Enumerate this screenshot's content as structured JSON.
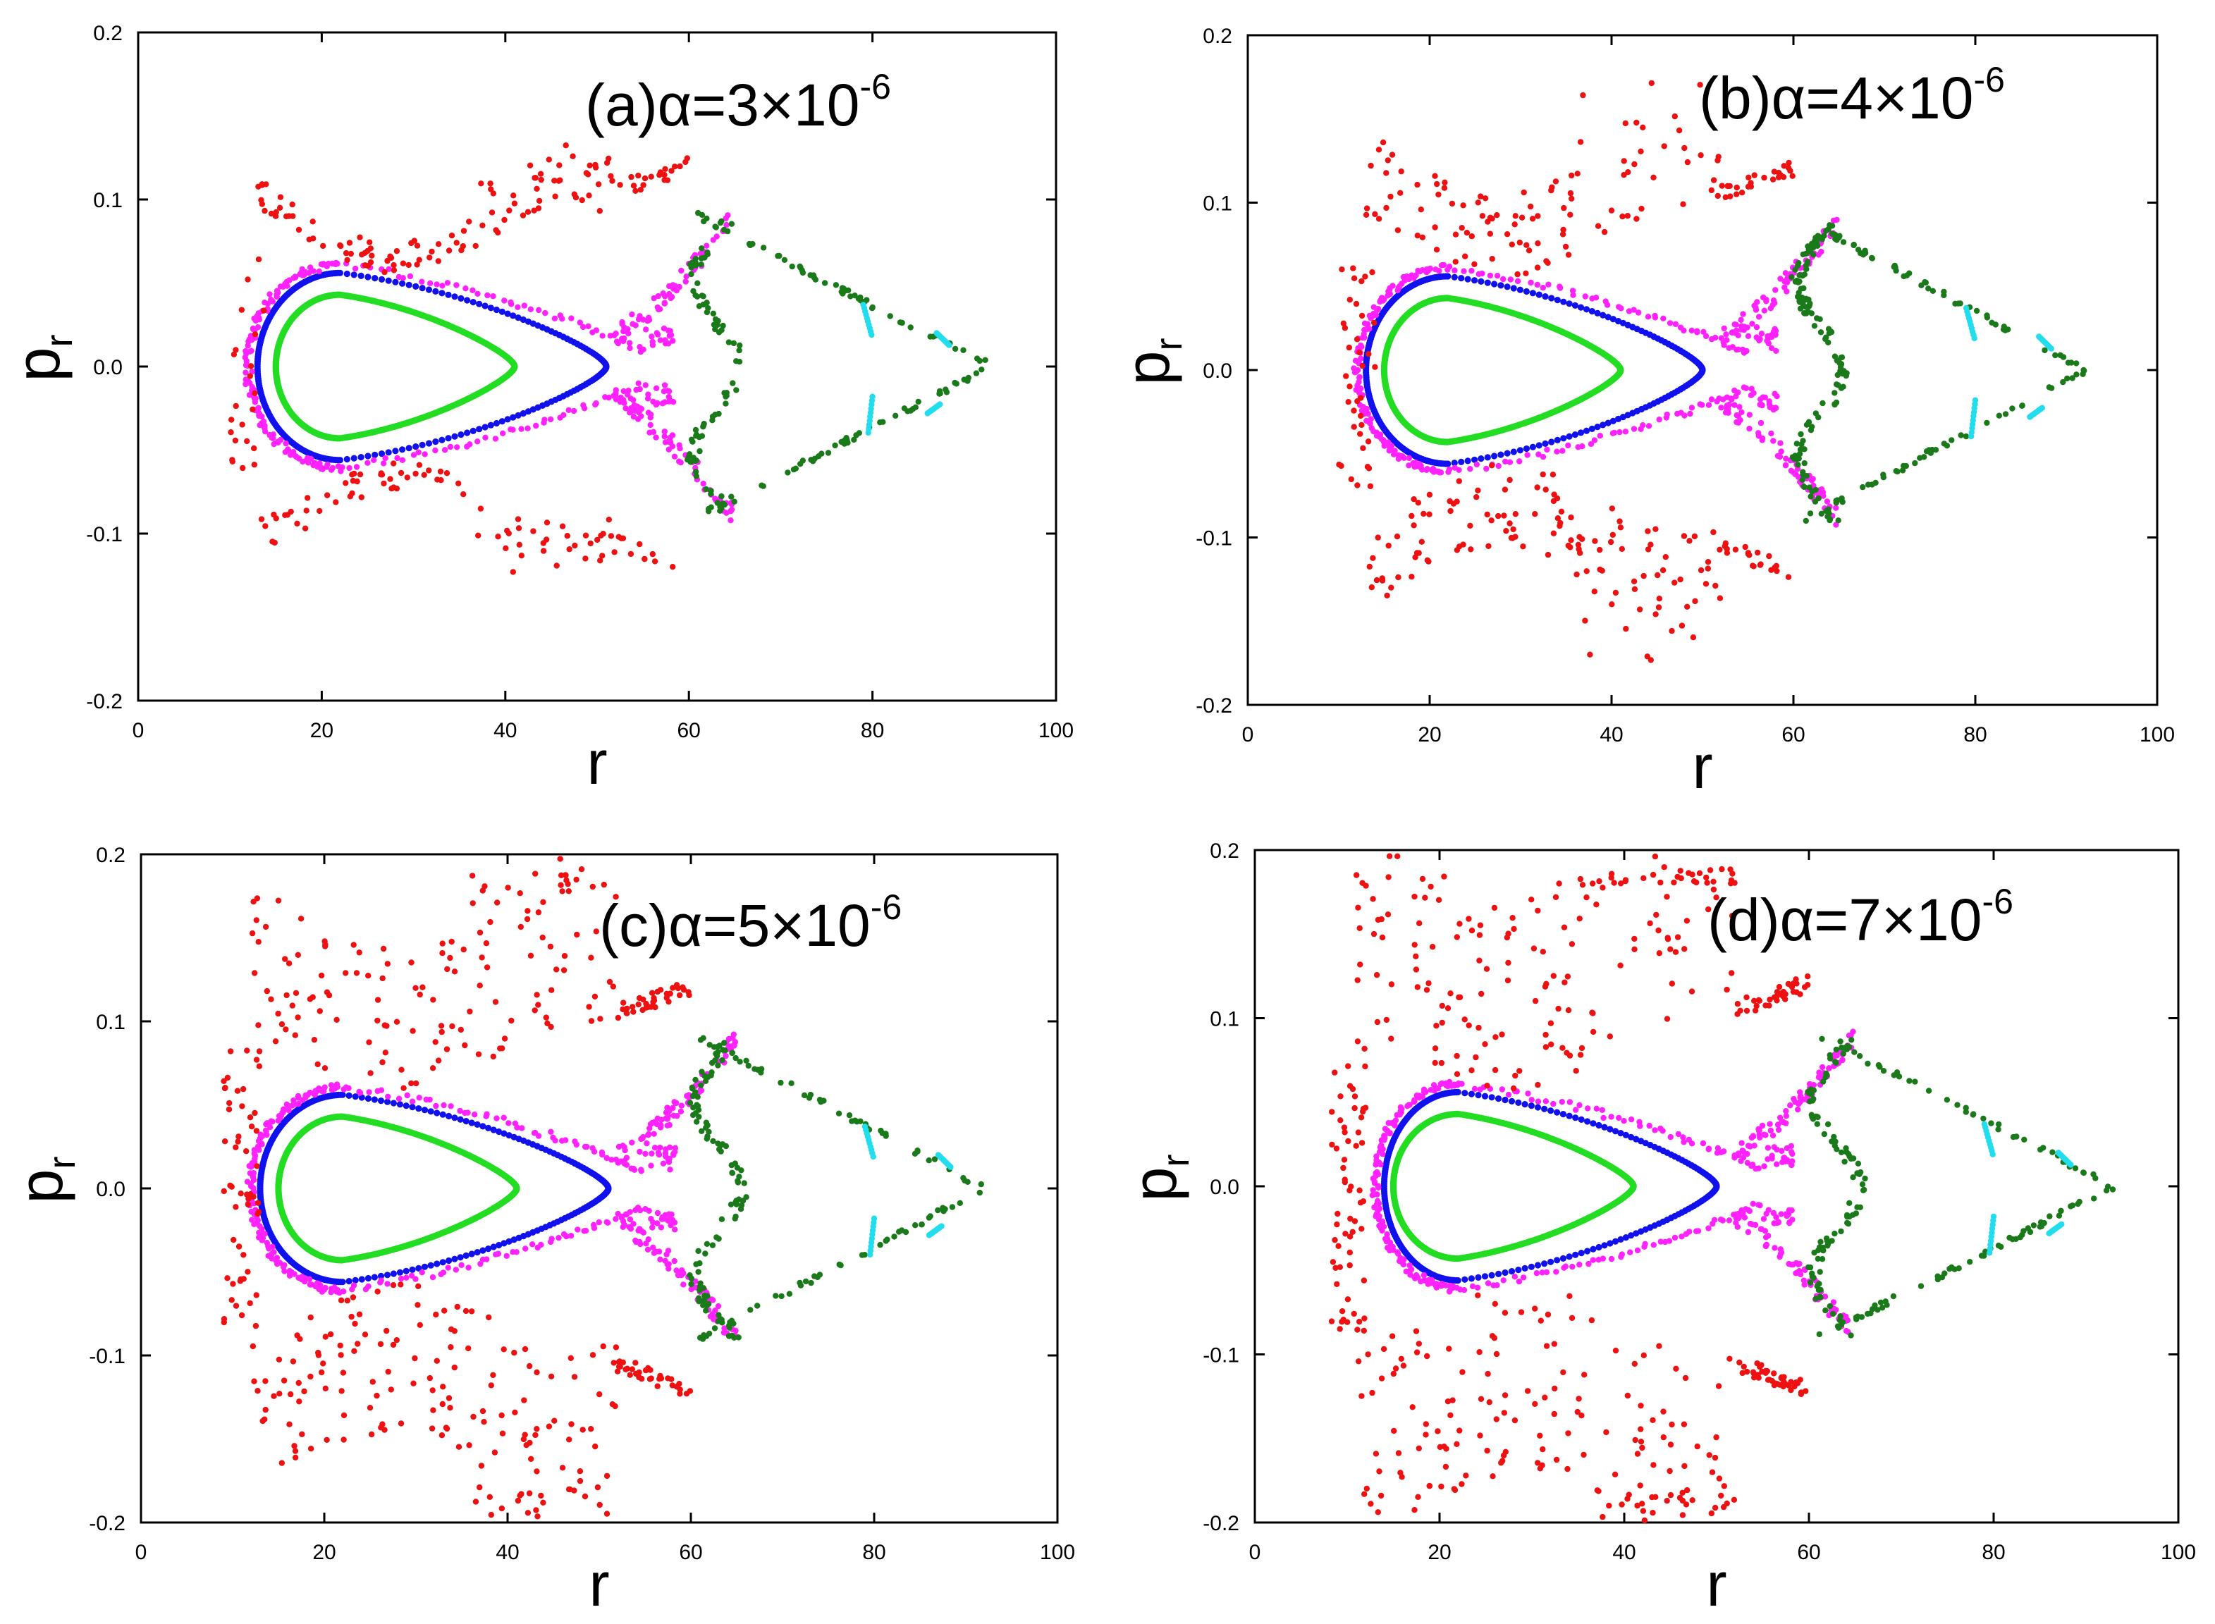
{
  "figure": {
    "description_colors": {
      "chaotic": "#ee1111",
      "boundary": "#ff22ff",
      "outer_torus": "#1111ee",
      "inner_torus": "#22dd22",
      "islands": "#1a7a1a",
      "small_islands": "#22ddee"
    }
  },
  "chart_data": [
    {
      "type": "scatter",
      "panel": "a",
      "title": {
        "prefix": "(a)α=3×10",
        "exponent": "-6"
      },
      "xlabel": "r",
      "ylabel": {
        "main": "p",
        "sub": "r"
      },
      "xlim": [
        0,
        100
      ],
      "ylim": [
        -0.2,
        0.2
      ],
      "xticks": [
        "0",
        "20",
        "40",
        "60",
        "80",
        "100"
      ],
      "yticks": [
        "-0.2",
        "-0.1",
        "0.0",
        "0.1",
        "0.2"
      ],
      "chaos": {
        "spread": 0.1,
        "count": 240
      },
      "series": [
        {
          "name": "inner torus",
          "color": "#22dd22",
          "shape": "loop",
          "xmin": 15,
          "xmax": 41,
          "xc": 22,
          "amp": 0.043,
          "n": 480
        },
        {
          "name": "outer torus",
          "color": "#1111ee",
          "shape": "loop",
          "xmin": 13,
          "xmax": 51,
          "xc": 22,
          "amp": 0.056,
          "n": 240
        },
        {
          "name": "boundary layer",
          "color": "#ff22ff",
          "shape": "sep",
          "xmin": 12,
          "xmax": 65,
          "amp": 0.061,
          "n": 260
        },
        {
          "name": "chaotic orbit",
          "color": "#ee1111",
          "shape": "chaos",
          "xmin": 10,
          "xmax": 60,
          "amp": 0.085
        },
        {
          "name": "island chain",
          "color": "#1a7a1a",
          "shape": "tri",
          "xmin": 61,
          "xmax": 93,
          "amp": 0.09,
          "n": 190
        },
        {
          "name": "small islands",
          "color": "#22ddee",
          "shape": "dash",
          "xmin": 79,
          "xmax": 89,
          "amp": 0.04,
          "n": 40
        }
      ]
    },
    {
      "type": "scatter",
      "panel": "b",
      "title": {
        "prefix": "(b)α=4×10",
        "exponent": "-6"
      },
      "xlabel": "r",
      "ylabel": {
        "main": "p",
        "sub": "r"
      },
      "xlim": [
        0,
        100
      ],
      "ylim": [
        -0.2,
        0.2
      ],
      "xticks": [
        "0",
        "20",
        "40",
        "60",
        "80",
        "100"
      ],
      "yticks": [
        "-0.2",
        "-0.1",
        "0.0",
        "0.1",
        "0.2"
      ],
      "chaos": {
        "spread": 0.13,
        "count": 320
      },
      "series": [
        {
          "name": "inner torus",
          "color": "#22dd22",
          "shape": "loop",
          "xmin": 15,
          "xmax": 41,
          "xc": 22,
          "amp": 0.043,
          "n": 480
        },
        {
          "name": "outer torus",
          "color": "#1111ee",
          "shape": "loop",
          "xmin": 13,
          "xmax": 50,
          "xc": 22,
          "amp": 0.056,
          "n": 240
        },
        {
          "name": "boundary layer",
          "color": "#ff22ff",
          "shape": "sep",
          "xmin": 12,
          "xmax": 65,
          "amp": 0.061,
          "n": 280
        },
        {
          "name": "chaotic orbit",
          "color": "#ee1111",
          "shape": "chaos",
          "xmin": 10,
          "xmax": 60,
          "amp": 0.085
        },
        {
          "name": "island chain",
          "color": "#1a7a1a",
          "shape": "tri",
          "xmin": 61,
          "xmax": 92,
          "amp": 0.09,
          "n": 240
        },
        {
          "name": "small islands",
          "color": "#22ddee",
          "shape": "dash",
          "xmin": 80,
          "xmax": 88,
          "amp": 0.04,
          "n": 40
        }
      ]
    },
    {
      "type": "scatter",
      "panel": "c",
      "title": {
        "prefix": "(c)α=5×10",
        "exponent": "-6"
      },
      "xlabel": "r",
      "ylabel": {
        "main": "p",
        "sub": "r"
      },
      "xlim": [
        0,
        100
      ],
      "ylim": [
        -0.2,
        0.2
      ],
      "xticks": [
        "0",
        "20",
        "40",
        "60",
        "80",
        "100"
      ],
      "yticks": [
        "-0.2",
        "-0.1",
        "0.0",
        "0.1",
        "0.2"
      ],
      "chaos": {
        "spread": 0.17,
        "count": 430
      },
      "series": [
        {
          "name": "inner torus",
          "color": "#22dd22",
          "shape": "loop",
          "xmin": 15,
          "xmax": 41,
          "xc": 22,
          "amp": 0.043,
          "n": 480
        },
        {
          "name": "outer torus",
          "color": "#1111ee",
          "shape": "loop",
          "xmin": 13,
          "xmax": 51,
          "xc": 22,
          "amp": 0.056,
          "n": 260
        },
        {
          "name": "boundary layer",
          "color": "#ff22ff",
          "shape": "sep",
          "xmin": 12,
          "xmax": 65,
          "amp": 0.061,
          "n": 300
        },
        {
          "name": "chaotic orbit",
          "color": "#ee1111",
          "shape": "chaos",
          "xmin": 9,
          "xmax": 60,
          "amp": 0.085
        },
        {
          "name": "island chain",
          "color": "#1a7a1a",
          "shape": "tri",
          "xmin": 61,
          "xmax": 92,
          "amp": 0.09,
          "n": 200
        },
        {
          "name": "small islands",
          "color": "#22ddee",
          "shape": "dash",
          "xmin": 80,
          "xmax": 88,
          "amp": 0.04,
          "n": 40
        }
      ]
    },
    {
      "type": "scatter",
      "panel": "d",
      "title": {
        "prefix": "(d)α=7×10",
        "exponent": "-6"
      },
      "xlabel": "r",
      "ylabel": {
        "main": "p",
        "sub": "r"
      },
      "xlim": [
        0,
        100
      ],
      "ylim": [
        -0.2,
        0.2
      ],
      "xticks": [
        "0",
        "20",
        "40",
        "60",
        "80",
        "100"
      ],
      "yticks": [
        "-0.2",
        "-0.1",
        "0.0",
        "0.1",
        "0.2"
      ],
      "chaos": {
        "spread": 0.2,
        "count": 470
      },
      "series": [
        {
          "name": "inner torus",
          "color": "#22dd22",
          "shape": "loop",
          "xmin": 15,
          "xmax": 41,
          "xc": 22,
          "amp": 0.043,
          "n": 480
        },
        {
          "name": "outer torus",
          "color": "#1111ee",
          "shape": "loop",
          "xmin": 14,
          "xmax": 50,
          "xc": 22,
          "amp": 0.056,
          "n": 240
        },
        {
          "name": "boundary layer",
          "color": "#ff22ff",
          "shape": "sep",
          "xmin": 13,
          "xmax": 65,
          "amp": 0.061,
          "n": 300
        },
        {
          "name": "chaotic orbit",
          "color": "#ee1111",
          "shape": "chaos",
          "xmin": 8,
          "xmax": 60,
          "amp": 0.085
        },
        {
          "name": "island chain",
          "color": "#1a7a1a",
          "shape": "tri",
          "xmin": 61,
          "xmax": 93,
          "amp": 0.09,
          "n": 200
        },
        {
          "name": "small islands",
          "color": "#22ddee",
          "shape": "dash",
          "xmin": 80,
          "xmax": 89,
          "amp": 0.04,
          "n": 40
        }
      ]
    }
  ]
}
